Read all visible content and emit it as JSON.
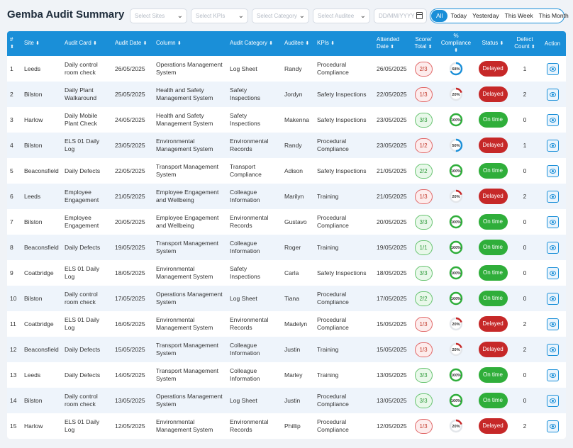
{
  "title": "Gemba Audit Summary",
  "filters": {
    "sites_placeholder": "Select Sites",
    "kpis_placeholder": "Select KPIs",
    "category_placeholder": "Select Category",
    "auditee_placeholder": "Select Auditee",
    "date_placeholder": "DD/MM/YYYY"
  },
  "range": {
    "all": "All",
    "today": "Today",
    "yesterday": "Yesterday",
    "this_week": "This Week",
    "this_month": "This Month"
  },
  "columns": {
    "num": "#",
    "site": "Site",
    "audit_card": "Audit Card",
    "audit_date": "Audit Date",
    "column": "Column",
    "audit_category": "Audit Category",
    "auditee": "Auditee",
    "kpis": "KPIs",
    "attended_date_1": "Attended",
    "attended_date_2": "Date",
    "score_1": "Score/",
    "score_2": "Total",
    "compliance_1": "%",
    "compliance_2": "Compliance",
    "status": "Status",
    "defect_1": "Defect",
    "defect_2": "Count",
    "action": "Action"
  },
  "colors": {
    "accent": "#1a8fd8",
    "delayed": "#c62828",
    "on_time": "#2fae3a",
    "score_bad": "#e06666",
    "score_good": "#66c36f"
  },
  "icons": {
    "sort": "sort-arrows-icon",
    "chevron": "chevron-down-icon",
    "calendar": "calendar-icon",
    "action": "view-eye-icon"
  },
  "rows": [
    {
      "num": "1",
      "site": "Leeds",
      "card": "Daily control room check",
      "date": "26/05/2025",
      "column": "Operations Management System",
      "category": "Log Sheet",
      "auditee": "Randy",
      "kpi": "Procedural Compliance",
      "attended": "26/05/2025",
      "score": "2/3",
      "compliance": 68,
      "compliance_label": "68%",
      "status": "Delayed",
      "defects": "1"
    },
    {
      "num": "2",
      "site": "Bilston",
      "card": "Daily Plant Walkaround",
      "date": "25/05/2025",
      "column": "Health and Safety Management System",
      "category": "Safety Inspections",
      "auditee": "Jordyn",
      "kpi": "Safety Inspections",
      "attended": "22/05/2025",
      "score": "1/3",
      "compliance": 20,
      "compliance_label": "20%",
      "status": "Delayed",
      "defects": "2"
    },
    {
      "num": "3",
      "site": "Harlow",
      "card": "Daily Mobile Plant Check",
      "date": "24/05/2025",
      "column": "Health and Safety Management System",
      "category": "Safety Inspections",
      "auditee": "Makenna",
      "kpi": "Safety Inspections",
      "attended": "23/05/2025",
      "score": "3/3",
      "compliance": 100,
      "compliance_label": "100%",
      "status": "On time",
      "defects": "0"
    },
    {
      "num": "4",
      "site": "Bilston",
      "card": "ELS 01 Daily Log",
      "date": "23/05/2025",
      "column": "Environmental Management System",
      "category": "Environmental Records",
      "auditee": "Randy",
      "kpi": "Procedural Compliance",
      "attended": "23/05/2025",
      "score": "1/2",
      "compliance": 50,
      "compliance_label": "50%",
      "status": "Delayed",
      "defects": "1"
    },
    {
      "num": "5",
      "site": "Beaconsfield",
      "card": "Daily Defects",
      "date": "22/05/2025",
      "column": "Transport Management System",
      "category": "Transport Compliance",
      "auditee": "Adison",
      "kpi": "Safety Inspections",
      "attended": "21/05/2025",
      "score": "2/2",
      "compliance": 100,
      "compliance_label": "100%",
      "status": "On time",
      "defects": "0"
    },
    {
      "num": "6",
      "site": "Leeds",
      "card": "Employee Engagement",
      "date": "21/05/2025",
      "column": "Employee Engagement and Wellbeing",
      "category": "Colleague Information",
      "auditee": "Marilyn",
      "kpi": "Training",
      "attended": "21/05/2025",
      "score": "1/3",
      "compliance": 20,
      "compliance_label": "20%",
      "status": "Delayed",
      "defects": "2"
    },
    {
      "num": "7",
      "site": "Bilston",
      "card": "Employee Engagement",
      "date": "20/05/2025",
      "column": "Employee Engagement and Wellbeing",
      "category": "Environmental Records",
      "auditee": "Gustavo",
      "kpi": "Procedural Compliance",
      "attended": "20/05/2025",
      "score": "3/3",
      "compliance": 100,
      "compliance_label": "100%",
      "status": "On time",
      "defects": "0"
    },
    {
      "num": "8",
      "site": "Beaconsfield",
      "card": "Daily Defects",
      "date": "19/05/2025",
      "column": "Transport Management System",
      "category": "Colleague Information",
      "auditee": "Roger",
      "kpi": "Training",
      "attended": "19/05/2025",
      "score": "1/1",
      "compliance": 100,
      "compliance_label": "100%",
      "status": "On time",
      "defects": "0"
    },
    {
      "num": "9",
      "site": "Coatbridge",
      "card": "ELS 01 Daily Log",
      "date": "18/05/2025",
      "column": "Environmental Management System",
      "category": "Safety Inspections",
      "auditee": "Carla",
      "kpi": "Safety Inspections",
      "attended": "18/05/2025",
      "score": "3/3",
      "compliance": 100,
      "compliance_label": "100%",
      "status": "On time",
      "defects": "0"
    },
    {
      "num": "10",
      "site": "Bilston",
      "card": "Daily control room check",
      "date": "17/05/2025",
      "column": "Operations Management System",
      "category": "Log Sheet",
      "auditee": "Tiana",
      "kpi": "Procedural Compliance",
      "attended": "17/05/2025",
      "score": "2/2",
      "compliance": 100,
      "compliance_label": "100%",
      "status": "On time",
      "defects": "0"
    },
    {
      "num": "11",
      "site": "Coatbridge",
      "card": "ELS 01 Daily Log",
      "date": "16/05/2025",
      "column": "Environmental Management System",
      "category": "Environmental Records",
      "auditee": "Madelyn",
      "kpi": "Procedural Compliance",
      "attended": "15/05/2025",
      "score": "1/3",
      "compliance": 20,
      "compliance_label": "20%",
      "status": "Delayed",
      "defects": "2"
    },
    {
      "num": "12",
      "site": "Beaconsfield",
      "card": "Daily Defects",
      "date": "15/05/2025",
      "column": "Transport Management System",
      "category": "Colleague Information",
      "auditee": "Justin",
      "kpi": "Training",
      "attended": "15/05/2025",
      "score": "1/3",
      "compliance": 20,
      "compliance_label": "20%",
      "status": "Delayed",
      "defects": "2"
    },
    {
      "num": "13",
      "site": "Leeds",
      "card": "Daily Defects",
      "date": "14/05/2025",
      "column": "Transport Management System",
      "category": "Colleague Information",
      "auditee": "Marley",
      "kpi": "Training",
      "attended": "13/05/2025",
      "score": "3/3",
      "compliance": 100,
      "compliance_label": "100%",
      "status": "On time",
      "defects": "0"
    },
    {
      "num": "14",
      "site": "Bilston",
      "card": "Daily control room check",
      "date": "13/05/2025",
      "column": "Operations Management System",
      "category": "Log Sheet",
      "auditee": "Justin",
      "kpi": "Procedural Compliance",
      "attended": "13/05/2025",
      "score": "3/3",
      "compliance": 100,
      "compliance_label": "100%",
      "status": "On time",
      "defects": "0"
    },
    {
      "num": "15",
      "site": "Harlow",
      "card": "ELS 01 Daily Log",
      "date": "12/05/2025",
      "column": "Environmental Management System",
      "category": "Environmental Records",
      "auditee": "Phillip",
      "kpi": "Procedural Compliance",
      "attended": "12/05/2025",
      "score": "1/3",
      "compliance": 20,
      "compliance_label": "20%",
      "status": "Delayed",
      "defects": "2"
    }
  ]
}
